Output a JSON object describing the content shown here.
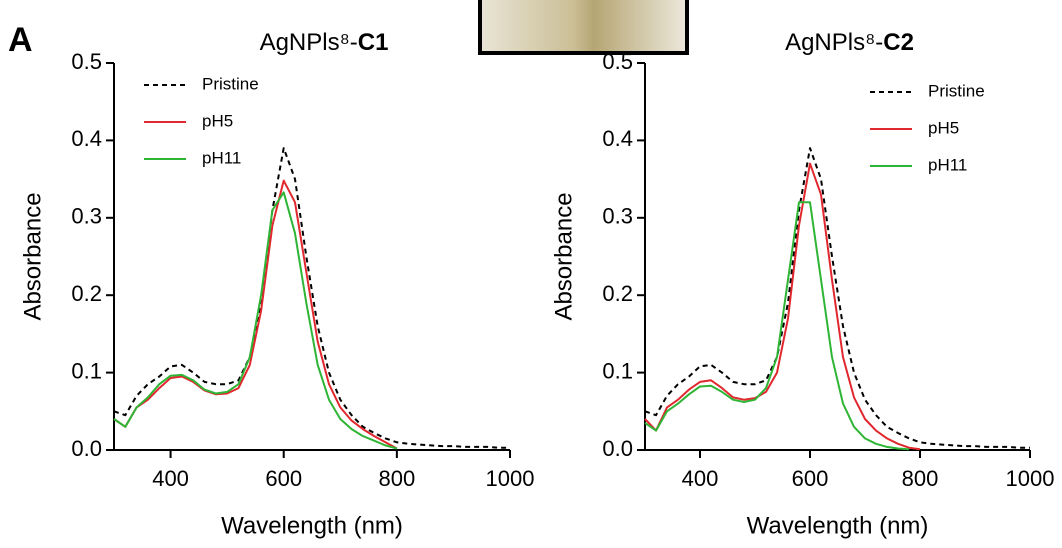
{
  "panel_label": "A",
  "chart_data": [
    {
      "type": "line",
      "title": "AgNPls⁸-",
      "title_emphasis": "C1",
      "x_label": "Wavelength (nm)",
      "y_label": "Absorbance",
      "x": [
        300,
        320,
        340,
        360,
        380,
        400,
        420,
        440,
        460,
        480,
        500,
        520,
        540,
        560,
        580,
        600,
        620,
        640,
        660,
        680,
        700,
        720,
        740,
        760,
        780,
        800,
        820,
        840,
        860,
        880,
        900,
        920,
        940,
        960,
        980,
        1000
      ],
      "series": [
        {
          "name": "Pristine",
          "color": "#000000",
          "dash": true,
          "values": [
            0.05,
            0.045,
            0.07,
            0.085,
            0.095,
            0.108,
            0.11,
            0.1,
            0.088,
            0.085,
            0.085,
            0.09,
            0.12,
            0.19,
            0.31,
            0.39,
            0.35,
            0.25,
            0.16,
            0.1,
            0.065,
            0.045,
            0.03,
            0.022,
            0.015,
            0.01,
            0.008,
            0.007,
            0.006,
            0.005,
            0.005,
            0.004,
            0.004,
            0.004,
            0.003,
            0.003
          ]
        },
        {
          "name": "pH5",
          "color": "#e0282e",
          "dash": false,
          "values": [
            0.04,
            0.03,
            0.055,
            0.065,
            0.08,
            0.093,
            0.095,
            0.088,
            0.077,
            0.072,
            0.073,
            0.08,
            0.11,
            0.18,
            0.29,
            0.348,
            0.32,
            0.23,
            0.14,
            0.085,
            0.055,
            0.038,
            0.027,
            0.018,
            0.01,
            0.002,
            null,
            null,
            null,
            null,
            null,
            null,
            null,
            null,
            null,
            null
          ]
        },
        {
          "name": "pH11",
          "color": "#2fb536",
          "dash": false,
          "values": [
            0.04,
            0.03,
            0.055,
            0.068,
            0.085,
            0.096,
            0.097,
            0.09,
            0.078,
            0.073,
            0.075,
            0.085,
            0.12,
            0.2,
            0.31,
            0.333,
            0.28,
            0.19,
            0.11,
            0.065,
            0.04,
            0.027,
            0.018,
            0.012,
            0.006,
            0.002,
            null,
            null,
            null,
            null,
            null,
            null,
            null,
            null,
            null,
            null
          ]
        }
      ],
      "xlim": [
        300,
        1000
      ],
      "xticks": [
        400,
        600,
        800,
        1000
      ],
      "ylim": [
        0,
        0.5
      ],
      "yticks": [
        {
          "value": 0,
          "label": "0.0"
        },
        0.1,
        0.2,
        0.3,
        0.4,
        0.5
      ],
      "legend": "top-left"
    },
    {
      "type": "line",
      "title": "AgNPls⁸-",
      "title_emphasis": "C2",
      "x_label": "Wavelength (nm)",
      "y_label": "Absorbance",
      "x": [
        300,
        320,
        340,
        360,
        380,
        400,
        420,
        440,
        460,
        480,
        500,
        520,
        540,
        560,
        580,
        600,
        620,
        640,
        660,
        680,
        700,
        720,
        740,
        760,
        780,
        800,
        820,
        840,
        860,
        880,
        900,
        920,
        940,
        960,
        980,
        1000
      ],
      "series": [
        {
          "name": "Pristine",
          "color": "#000000",
          "dash": true,
          "values": [
            0.05,
            0.045,
            0.07,
            0.085,
            0.095,
            0.108,
            0.11,
            0.1,
            0.088,
            0.085,
            0.085,
            0.09,
            0.12,
            0.19,
            0.31,
            0.39,
            0.35,
            0.25,
            0.16,
            0.1,
            0.065,
            0.045,
            0.03,
            0.022,
            0.015,
            0.01,
            0.008,
            0.007,
            0.006,
            0.005,
            0.005,
            0.004,
            0.004,
            0.004,
            0.003,
            0.003
          ]
        },
        {
          "name": "pH5",
          "color": "#e0282e",
          "dash": false,
          "values": [
            0.04,
            0.025,
            0.055,
            0.065,
            0.078,
            0.088,
            0.09,
            0.08,
            0.068,
            0.065,
            0.067,
            0.075,
            0.1,
            0.17,
            0.29,
            0.37,
            0.33,
            0.22,
            0.12,
            0.068,
            0.04,
            0.025,
            0.015,
            0.008,
            0.003,
            0.001,
            null,
            null,
            null,
            null,
            null,
            null,
            null,
            null,
            null,
            null
          ]
        },
        {
          "name": "pH11",
          "color": "#2fb536",
          "dash": false,
          "values": [
            0.035,
            0.025,
            0.05,
            0.06,
            0.072,
            0.082,
            0.083,
            0.075,
            0.065,
            0.062,
            0.065,
            0.08,
            0.12,
            0.22,
            0.32,
            0.32,
            0.22,
            0.12,
            0.06,
            0.03,
            0.015,
            0.008,
            0.004,
            0.002,
            0.001,
            null,
            null,
            null,
            null,
            null,
            null,
            null,
            null,
            null,
            null,
            null
          ]
        }
      ],
      "xlim": [
        300,
        1000
      ],
      "xticks": [
        400,
        600,
        800,
        1000
      ],
      "ylim": [
        0,
        0.5
      ],
      "yticks": [
        {
          "value": 0,
          "label": "0.0"
        },
        0.1,
        0.2,
        0.3,
        0.4,
        0.5
      ],
      "legend": "top-right"
    }
  ]
}
